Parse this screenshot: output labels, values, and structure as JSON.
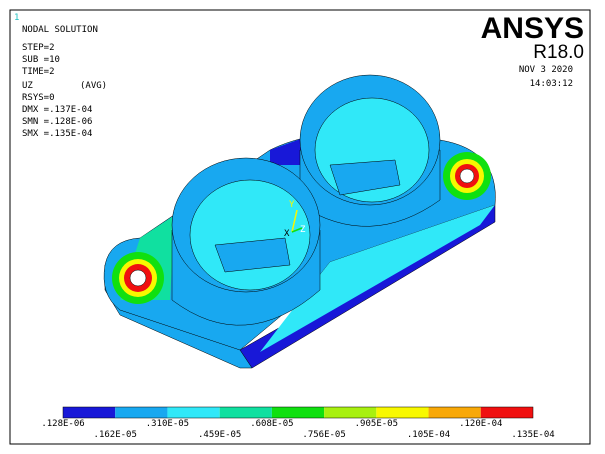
{
  "window_number": "1",
  "info": {
    "title": "NODAL SOLUTION",
    "lines": [
      "STEP=2",
      "SUB =10",
      "TIME=2"
    ],
    "quantity": "UZ",
    "averaging": "(AVG)",
    "more_lines": [
      "RSYS=0",
      "DMX =.137E-04",
      "SMN =.128E-06",
      "SMX =.135E-04"
    ]
  },
  "header": {
    "logo": "ANSYS",
    "release": "R18.0",
    "date": "NOV  3 2020",
    "time": "14:03:12"
  },
  "axis_triad": {
    "y": "Y",
    "x": "X",
    "z": "Z"
  },
  "legend": {
    "colors": [
      "#1818d8",
      "#18a8f0",
      "#30e8f8",
      "#10e0a0",
      "#10e010",
      "#a8f010",
      "#f8f800",
      "#f8a808",
      "#f01010"
    ],
    "labels": [
      ".128E-06",
      ".162E-05",
      ".310E-05",
      ".459E-05",
      ".608E-05",
      ".756E-05",
      ".905E-05",
      ".105E-04",
      ".120E-04",
      ".135E-04"
    ]
  }
}
